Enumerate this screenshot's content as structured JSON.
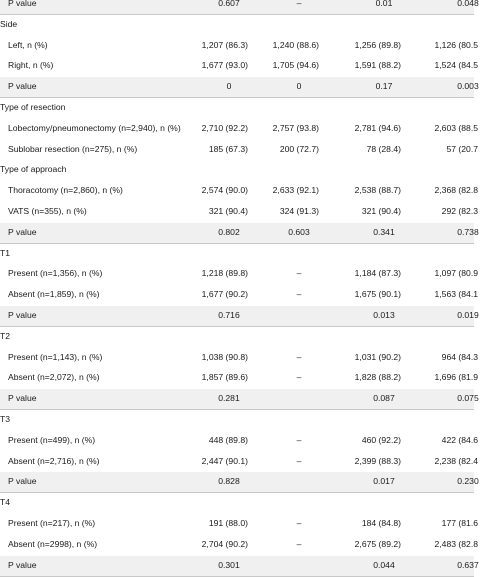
{
  "rows": [
    {
      "type": "p",
      "label": "P value",
      "c": [
        "0.607",
        "–",
        "0.01",
        "0.048"
      ]
    },
    {
      "type": "h",
      "label": "Side"
    },
    {
      "type": "d",
      "label": "Left, n (%)",
      "c": [
        "1,207 (86.3)",
        "1,240 (88.6)",
        "1,256 (89.8)",
        "1,126 (80.5"
      ]
    },
    {
      "type": "d",
      "label": "Right, n (%)",
      "c": [
        "1,677 (93.0)",
        "1,705 (94.6)",
        "1,591 (88.2)",
        "1,524 (84.5"
      ]
    },
    {
      "type": "p",
      "label": "P value",
      "c": [
        "0",
        "0",
        "0.17",
        "0.003"
      ]
    },
    {
      "type": "h",
      "label": "Type of resection"
    },
    {
      "type": "d",
      "label": "Lobectomy/pneumonectomy (n=2,940), n (%)",
      "c": [
        "2,710 (92.2)",
        "2,757 (93.8)",
        "2,781 (94.6)",
        "2,603 (88.5"
      ]
    },
    {
      "type": "d",
      "label": "Sublobar resection (n=275), n (%)",
      "c": [
        "185 (67.3)",
        "200 (72.7)",
        "78 (28.4)",
        "57 (20.7"
      ]
    },
    {
      "type": "h",
      "label": "Type of approach"
    },
    {
      "type": "d",
      "label": "Thoracotomy (n=2,860), n (%)",
      "c": [
        "2,574 (90.0)",
        "2,633 (92.1)",
        "2,538 (88.7)",
        "2,368 (82.8"
      ]
    },
    {
      "type": "d",
      "label": "VATS (n=355), n (%)",
      "c": [
        "321 (90.4)",
        "324 (91.3)",
        "321 (90.4)",
        "292 (82.3"
      ]
    },
    {
      "type": "p",
      "label": "P value",
      "c": [
        "0.802",
        "0.603",
        "0.341",
        "0.738"
      ]
    },
    {
      "type": "h",
      "label": "T1"
    },
    {
      "type": "d",
      "label": "Present (n=1,356), n (%)",
      "c": [
        "1,218 (89.8)",
        "–",
        "1,184 (87.3)",
        "1,097 (80.9"
      ]
    },
    {
      "type": "d",
      "label": "Absent (n=1,859), n (%)",
      "c": [
        "1,677 (90.2)",
        "–",
        "1,675 (90.1)",
        "1,563 (84.1"
      ]
    },
    {
      "type": "p",
      "label": "P value",
      "c": [
        "0.716",
        "",
        "0.013",
        "0.019"
      ]
    },
    {
      "type": "h",
      "label": "T2"
    },
    {
      "type": "d",
      "label": "Present (n=1,143), n (%)",
      "c": [
        "1,038 (90.8)",
        "–",
        "1,031 (90.2)",
        "964 (84.3"
      ]
    },
    {
      "type": "d",
      "label": "Absent (n=2,072), n (%)",
      "c": [
        "1,857 (89.6)",
        "–",
        "1,828 (88.2)",
        "1,696 (81.9"
      ]
    },
    {
      "type": "p",
      "label": "P value",
      "c": [
        "0.281",
        "",
        "0.087",
        "0.075"
      ]
    },
    {
      "type": "h",
      "label": "T3"
    },
    {
      "type": "d",
      "label": "Present (n=499), n (%)",
      "c": [
        "448 (89.8)",
        "–",
        "460 (92.2)",
        "422 (84.6"
      ]
    },
    {
      "type": "d",
      "label": "Absent (n=2,716), n (%)",
      "c": [
        "2,447 (90.1)",
        "–",
        "2,399 (88.3)",
        "2,238 (82.4"
      ]
    },
    {
      "type": "p",
      "label": "P value",
      "c": [
        "0.828",
        "",
        "0.017",
        "0.230"
      ]
    },
    {
      "type": "h",
      "label": "T4"
    },
    {
      "type": "d",
      "label": "Present (n=217), n (%)",
      "c": [
        "191 (88.0)",
        "–",
        "184 (84.8)",
        "177 (81.6"
      ]
    },
    {
      "type": "d",
      "label": "Absent (n=2998), n (%)",
      "c": [
        "2,704 (90.2)",
        "–",
        "2,675 (89.2)",
        "2,483 (82.8"
      ]
    },
    {
      "type": "p",
      "label": "P value",
      "c": [
        "0.301",
        "",
        "0.044",
        "0.637"
      ]
    }
  ]
}
